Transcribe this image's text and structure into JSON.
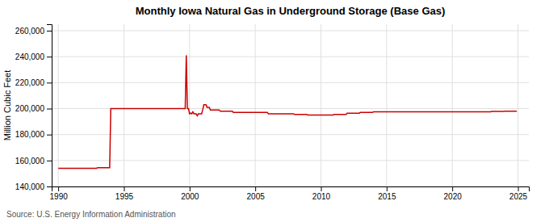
{
  "chart_data": {
    "type": "line",
    "title": "Monthly Iowa Natural Gas in Underground Storage (Base Gas)",
    "ylabel": "Million Cubic Feet",
    "annotations": [
      "Source: U.S. Energy Information Administration"
    ],
    "color": "#cc0000",
    "grid": true,
    "xlim": [
      1989.5,
      2025.83
    ],
    "ylim": [
      140000,
      265000
    ],
    "xticks": [
      1990,
      1995,
      2000,
      2005,
      2010,
      2015,
      2020,
      2025
    ],
    "yticks": [
      {
        "value": 140000,
        "label": "140,000"
      },
      {
        "value": 160000,
        "label": "160,000"
      },
      {
        "value": 180000,
        "label": "180,000"
      },
      {
        "value": 200000,
        "label": "200,000"
      },
      {
        "value": 220000,
        "label": "220,000"
      },
      {
        "value": 240000,
        "label": "240,000"
      },
      {
        "value": 260000,
        "label": "260,000"
      }
    ],
    "x": [
      1990.0,
      1990.083,
      1990.167,
      1990.25,
      1990.333,
      1990.417,
      1990.5,
      1990.583,
      1990.667,
      1990.75,
      1990.833,
      1990.917,
      1991.0,
      1991.083,
      1991.167,
      1991.25,
      1991.333,
      1991.417,
      1991.5,
      1991.583,
      1991.667,
      1991.75,
      1991.833,
      1991.917,
      1992.0,
      1992.083,
      1992.167,
      1992.25,
      1992.333,
      1992.417,
      1992.5,
      1992.583,
      1992.667,
      1992.75,
      1992.833,
      1992.917,
      1993.0,
      1993.083,
      1993.167,
      1993.25,
      1993.333,
      1993.417,
      1993.5,
      1993.583,
      1993.667,
      1993.75,
      1993.833,
      1993.917,
      1994.0,
      1994.083,
      1994.167,
      1994.25,
      1994.333,
      1994.417,
      1994.5,
      1994.583,
      1994.667,
      1994.75,
      1994.833,
      1994.917,
      1995.0,
      1995.083,
      1995.167,
      1995.25,
      1995.333,
      1995.417,
      1995.5,
      1995.583,
      1995.667,
      1995.75,
      1995.833,
      1995.917,
      1996.0,
      1996.083,
      1996.167,
      1996.25,
      1996.333,
      1996.417,
      1996.5,
      1996.583,
      1996.667,
      1996.75,
      1996.833,
      1996.917,
      1997.0,
      1997.083,
      1997.167,
      1997.25,
      1997.333,
      1997.417,
      1997.5,
      1997.583,
      1997.667,
      1997.75,
      1997.833,
      1997.917,
      1998.0,
      1998.083,
      1998.167,
      1998.25,
      1998.333,
      1998.417,
      1998.5,
      1998.583,
      1998.667,
      1998.75,
      1998.833,
      1998.917,
      1999.0,
      1999.083,
      1999.167,
      1999.25,
      1999.333,
      1999.417,
      1999.5,
      1999.583,
      1999.667,
      1999.75,
      1999.833,
      1999.917,
      2000.0,
      2000.083,
      2000.167,
      2000.25,
      2000.333,
      2000.417,
      2000.5,
      2000.583,
      2000.667,
      2000.75,
      2000.833,
      2000.917,
      2001.0,
      2001.083,
      2001.167,
      2001.25,
      2001.333,
      2001.417,
      2001.5,
      2001.583,
      2001.667,
      2001.75,
      2001.833,
      2001.917,
      2002.0,
      2002.083,
      2002.167,
      2002.25,
      2002.333,
      2002.417,
      2002.5,
      2002.583,
      2002.667,
      2002.75,
      2002.833,
      2002.917,
      2003.0,
      2003.083,
      2003.167,
      2003.25,
      2003.333,
      2003.417,
      2003.5,
      2003.583,
      2003.667,
      2003.75,
      2003.833,
      2003.917,
      2004.0,
      2004.083,
      2004.167,
      2004.25,
      2004.333,
      2004.417,
      2004.5,
      2004.583,
      2004.667,
      2004.75,
      2004.833,
      2004.917,
      2005.0,
      2005.083,
      2005.167,
      2005.25,
      2005.333,
      2005.417,
      2005.5,
      2005.583,
      2005.667,
      2005.75,
      2005.833,
      2005.917,
      2006.0,
      2006.083,
      2006.167,
      2006.25,
      2006.333,
      2006.417,
      2006.5,
      2006.583,
      2006.667,
      2006.75,
      2006.833,
      2006.917,
      2007.0,
      2007.083,
      2007.167,
      2007.25,
      2007.333,
      2007.417,
      2007.5,
      2007.583,
      2007.667,
      2007.75,
      2007.833,
      2007.917,
      2008.0,
      2008.083,
      2008.167,
      2008.25,
      2008.333,
      2008.417,
      2008.5,
      2008.583,
      2008.667,
      2008.75,
      2008.833,
      2008.917,
      2009.0,
      2009.083,
      2009.167,
      2009.25,
      2009.333,
      2009.417,
      2009.5,
      2009.583,
      2009.667,
      2009.75,
      2009.833,
      2009.917,
      2010.0,
      2010.083,
      2010.167,
      2010.25,
      2010.333,
      2010.417,
      2010.5,
      2010.583,
      2010.667,
      2010.75,
      2010.833,
      2010.917,
      2011.0,
      2011.083,
      2011.167,
      2011.25,
      2011.333,
      2011.417,
      2011.5,
      2011.583,
      2011.667,
      2011.75,
      2011.833,
      2011.917,
      2012.0,
      2012.083,
      2012.167,
      2012.25,
      2012.333,
      2012.417,
      2012.5,
      2012.583,
      2012.667,
      2012.75,
      2012.833,
      2012.917,
      2013.0,
      2013.083,
      2013.167,
      2013.25,
      2013.333,
      2013.417,
      2013.5,
      2013.583,
      2013.667,
      2013.75,
      2013.833,
      2013.917,
      2014.0,
      2014.083,
      2014.167,
      2014.25,
      2014.333,
      2014.417,
      2014.5,
      2014.583,
      2014.667,
      2014.75,
      2014.833,
      2014.917,
      2015.0,
      2015.083,
      2015.167,
      2015.25,
      2015.333,
      2015.417,
      2015.5,
      2015.583,
      2015.667,
      2015.75,
      2015.833,
      2015.917,
      2016.0,
      2016.083,
      2016.167,
      2016.25,
      2016.333,
      2016.417,
      2016.5,
      2016.583,
      2016.667,
      2016.75,
      2016.833,
      2016.917,
      2017.0,
      2017.083,
      2017.167,
      2017.25,
      2017.333,
      2017.417,
      2017.5,
      2017.583,
      2017.667,
      2017.75,
      2017.833,
      2017.917,
      2018.0,
      2018.083,
      2018.167,
      2018.25,
      2018.333,
      2018.417,
      2018.5,
      2018.583,
      2018.667,
      2018.75,
      2018.833,
      2018.917,
      2019.0,
      2019.083,
      2019.167,
      2019.25,
      2019.333,
      2019.417,
      2019.5,
      2019.583,
      2019.667,
      2019.75,
      2019.833,
      2019.917,
      2020.0,
      2020.083,
      2020.167,
      2020.25,
      2020.333,
      2020.417,
      2020.5,
      2020.583,
      2020.667,
      2020.75,
      2020.833,
      2020.917,
      2021.0,
      2021.083,
      2021.167,
      2021.25,
      2021.333,
      2021.417,
      2021.5,
      2021.583,
      2021.667,
      2021.75,
      2021.833,
      2021.917,
      2022.0,
      2022.083,
      2022.167,
      2022.25,
      2022.333,
      2022.417,
      2022.5,
      2022.583,
      2022.667,
      2022.75,
      2022.833,
      2022.917,
      2023.0,
      2023.083,
      2023.167,
      2023.25,
      2023.333,
      2023.417,
      2023.5,
      2023.583,
      2023.667,
      2023.75,
      2023.833,
      2023.917,
      2024.0,
      2024.083,
      2024.167,
      2024.25,
      2024.333,
      2024.417,
      2024.5,
      2024.583,
      2024.667,
      2024.75,
      2024.833,
      2024.917
    ],
    "values": [
      154000,
      154000,
      154000,
      154000,
      154000,
      154000,
      154000,
      154000,
      154000,
      154000,
      154000,
      154000,
      154000,
      154000,
      154000,
      154000,
      154000,
      154000,
      154000,
      154000,
      154000,
      154000,
      154000,
      154000,
      154000,
      154000,
      154000,
      154000,
      154000,
      154000,
      154000,
      154000,
      154000,
      154000,
      154000,
      154000,
      154500,
      154500,
      154500,
      154500,
      154500,
      154500,
      154500,
      154500,
      154500,
      154500,
      154500,
      154500,
      200000,
      200000,
      200000,
      200000,
      200000,
      200000,
      200000,
      200000,
      200000,
      200000,
      200000,
      200000,
      200000,
      200000,
      200000,
      200000,
      200000,
      200000,
      200000,
      200000,
      200000,
      200000,
      200000,
      200000,
      200000,
      200000,
      200000,
      200000,
      200000,
      200000,
      200000,
      200000,
      200000,
      200000,
      200000,
      200000,
      200000,
      200000,
      200000,
      200000,
      200000,
      200000,
      200000,
      200000,
      200000,
      200000,
      200000,
      200000,
      200000,
      200000,
      200000,
      200000,
      200000,
      200000,
      200000,
      200000,
      200000,
      200000,
      200000,
      200000,
      200000,
      200000,
      200000,
      200000,
      200000,
      200000,
      200000,
      200000,
      200000,
      241000,
      200000,
      200000,
      196000,
      196500,
      196000,
      197500,
      196000,
      196000,
      196000,
      194500,
      196000,
      196000,
      196000,
      196000,
      199000,
      203000,
      203000,
      203000,
      201000,
      201000,
      201000,
      199000,
      199000,
      199000,
      199000,
      199000,
      199000,
      199000,
      199000,
      199000,
      198000,
      198000,
      198000,
      198000,
      198000,
      198000,
      198000,
      198000,
      198000,
      198000,
      198000,
      198000,
      197000,
      197000,
      197000,
      197000,
      197000,
      197000,
      197000,
      197000,
      197000,
      197000,
      197000,
      197000,
      197000,
      197000,
      197000,
      197000,
      197000,
      197000,
      197000,
      197000,
      197000,
      197000,
      197000,
      197000,
      197000,
      197000,
      197000,
      197000,
      197000,
      197000,
      197000,
      197000,
      196000,
      196000,
      196000,
      196000,
      196000,
      196000,
      196000,
      196000,
      196000,
      196000,
      196000,
      196000,
      196000,
      196000,
      196000,
      196000,
      196000,
      196000,
      196000,
      196000,
      196000,
      196000,
      196000,
      196000,
      195500,
      195500,
      195500,
      195500,
      195500,
      195500,
      195500,
      195500,
      195500,
      195500,
      195500,
      195500,
      195000,
      195000,
      195000,
      195000,
      195000,
      195000,
      195000,
      195000,
      195000,
      195000,
      195000,
      195000,
      195000,
      195000,
      195000,
      195000,
      195000,
      195000,
      195000,
      195000,
      195000,
      195000,
      195000,
      195000,
      195500,
      195500,
      195500,
      195500,
      195500,
      195500,
      195500,
      195500,
      195500,
      195500,
      195500,
      195500,
      196500,
      196500,
      196500,
      196500,
      196500,
      196500,
      196500,
      196500,
      196500,
      196500,
      196500,
      196500,
      197000,
      197000,
      197000,
      197000,
      197000,
      197000,
      197000,
      197000,
      197000,
      197000,
      197000,
      197000,
      197500,
      197500,
      197500,
      197500,
      197500,
      197500,
      197500,
      197500,
      197500,
      197500,
      197500,
      197500,
      197500,
      197500,
      197500,
      197500,
      197500,
      197500,
      197500,
      197500,
      197500,
      197500,
      197500,
      197500,
      197500,
      197500,
      197500,
      197500,
      197500,
      197500,
      197500,
      197500,
      197500,
      197500,
      197500,
      197500,
      197500,
      197500,
      197500,
      197500,
      197500,
      197500,
      197500,
      197500,
      197500,
      197500,
      197500,
      197500,
      197500,
      197500,
      197500,
      197500,
      197500,
      197500,
      197500,
      197500,
      197500,
      197500,
      197500,
      197500,
      197500,
      197500,
      197500,
      197500,
      197500,
      197500,
      197500,
      197500,
      197500,
      197500,
      197500,
      197500,
      197500,
      197500,
      197500,
      197500,
      197500,
      197500,
      197500,
      197500,
      197500,
      197500,
      197500,
      197500,
      197500,
      197500,
      197500,
      197500,
      197500,
      197500,
      197500,
      197500,
      197500,
      197500,
      197500,
      197500,
      197500,
      197500,
      197500,
      197500,
      197500,
      197500,
      197500,
      197500,
      197500,
      197500,
      197500,
      197500,
      197800,
      197800,
      197800,
      197800,
      197800,
      197800,
      197800,
      197800,
      197800,
      197800,
      197800,
      197800,
      198000,
      198000,
      198000,
      198000,
      198000,
      198000,
      198000,
      198000,
      198000,
      198000,
      198000,
      198000
    ]
  }
}
